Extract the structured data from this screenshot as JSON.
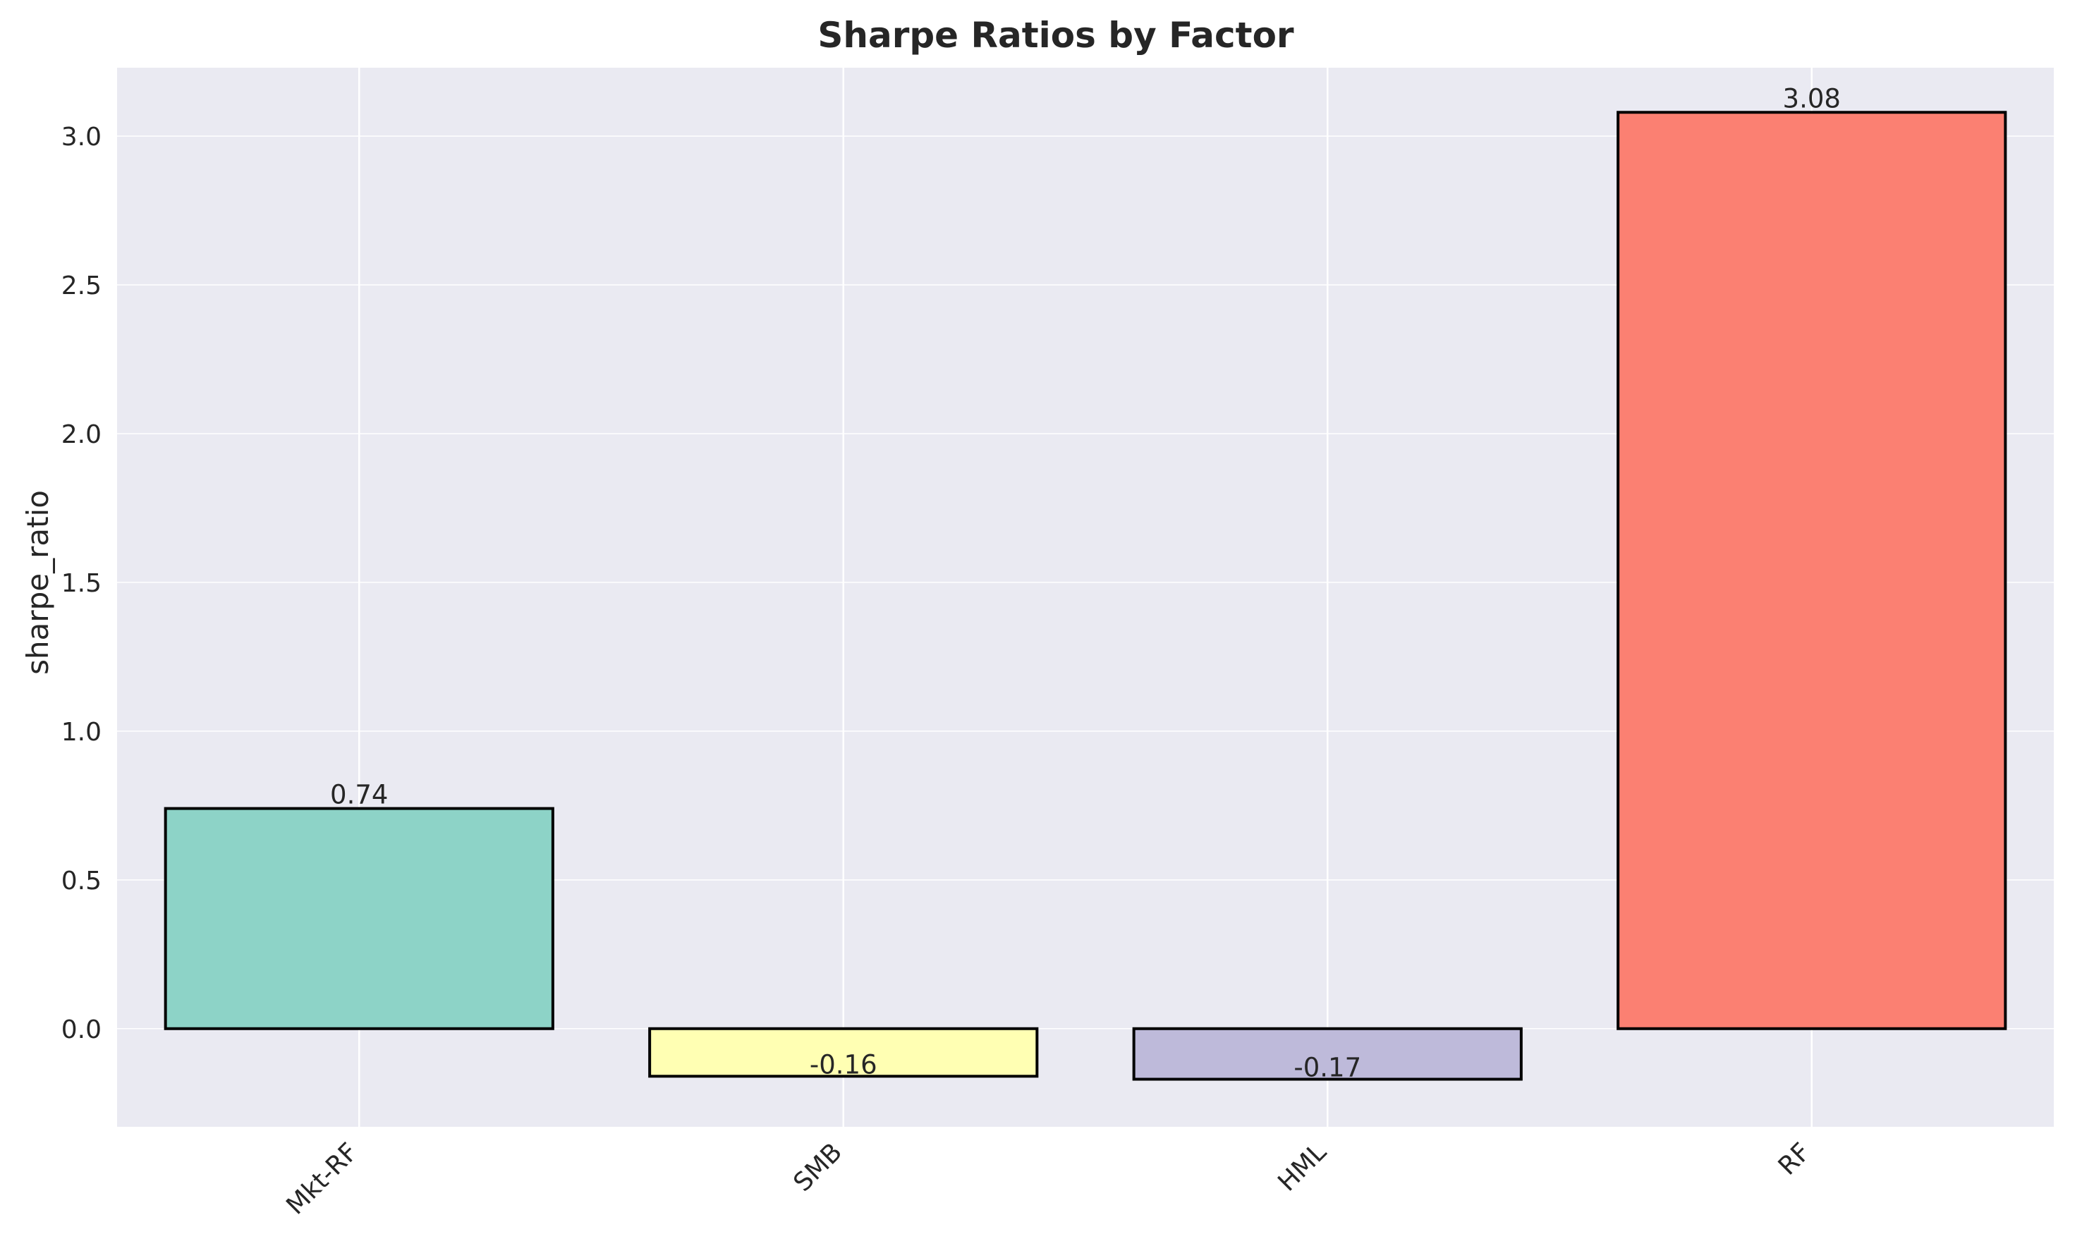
{
  "chart_data": {
    "type": "bar",
    "title": "Sharpe Ratios by Factor",
    "xlabel": "",
    "ylabel": "sharpe_ratio",
    "categories": [
      "Mkt-RF",
      "SMB",
      "HML",
      "RF"
    ],
    "values": [
      0.74,
      -0.16,
      -0.17,
      3.08
    ],
    "value_labels": [
      "0.74",
      "-0.16",
      "-0.17",
      "3.08"
    ],
    "bar_colors": [
      "#8dd3c7",
      "#ffffb3",
      "#bebada",
      "#fb8072"
    ],
    "bar_edge_color": "#000000",
    "ylim": [
      -0.33,
      3.23
    ],
    "yticks": [
      0.0,
      0.5,
      1.0,
      1.5,
      2.0,
      2.5,
      3.0
    ],
    "ytick_labels": [
      "0.0",
      "0.5",
      "1.0",
      "1.5",
      "2.0",
      "2.5",
      "3.0"
    ],
    "grid": true,
    "background_color": "#eaeaf2",
    "grid_color": "#ffffff",
    "xtick_rotation": -45
  }
}
